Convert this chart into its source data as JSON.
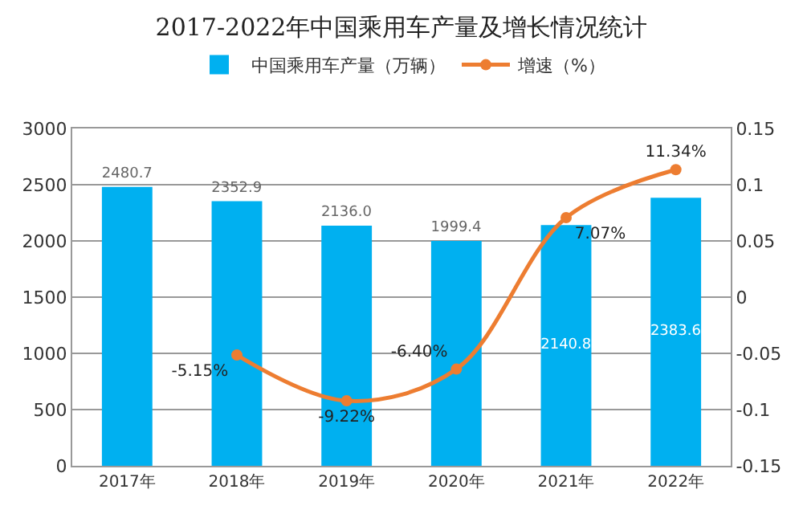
{
  "chart_data": {
    "type": "bar",
    "title": "2017-2022年中国乘用车产量及增长情况统计",
    "categories": [
      "2017年",
      "2018年",
      "2019年",
      "2020年",
      "2021年",
      "2022年"
    ],
    "series": [
      {
        "name": "中国乘用车产量（万辆）",
        "color": "#00b0f0",
        "values": [
          2480.7,
          2352.9,
          2136.0,
          1999.4,
          2140.8,
          2383.6
        ],
        "value_labels": [
          "2480.7",
          "2352.9",
          "2136.0",
          "1999.4",
          "2140.8",
          "2383.6"
        ]
      },
      {
        "name": "增速（%）",
        "type": "line",
        "axis": "y2",
        "color": "#ed7d31",
        "values": [
          null,
          -0.0515,
          -0.0922,
          -0.064,
          0.0707,
          0.1134
        ],
        "value_labels": [
          null,
          "-5.15%",
          "-9.22%",
          "-6.40%",
          "7.07%",
          "11.34%"
        ]
      }
    ],
    "ylim": [
      0,
      3000
    ],
    "yticks": [
      0,
      500,
      1000,
      1500,
      2000,
      2500,
      3000
    ],
    "y2lim": [
      -0.15,
      0.15
    ],
    "y2ticks": [
      -0.15,
      -0.1,
      -0.05,
      0,
      0.05,
      0.1,
      0.15
    ],
    "grid": "y",
    "legend": "top",
    "marker": "circle",
    "line_style": "solid"
  }
}
